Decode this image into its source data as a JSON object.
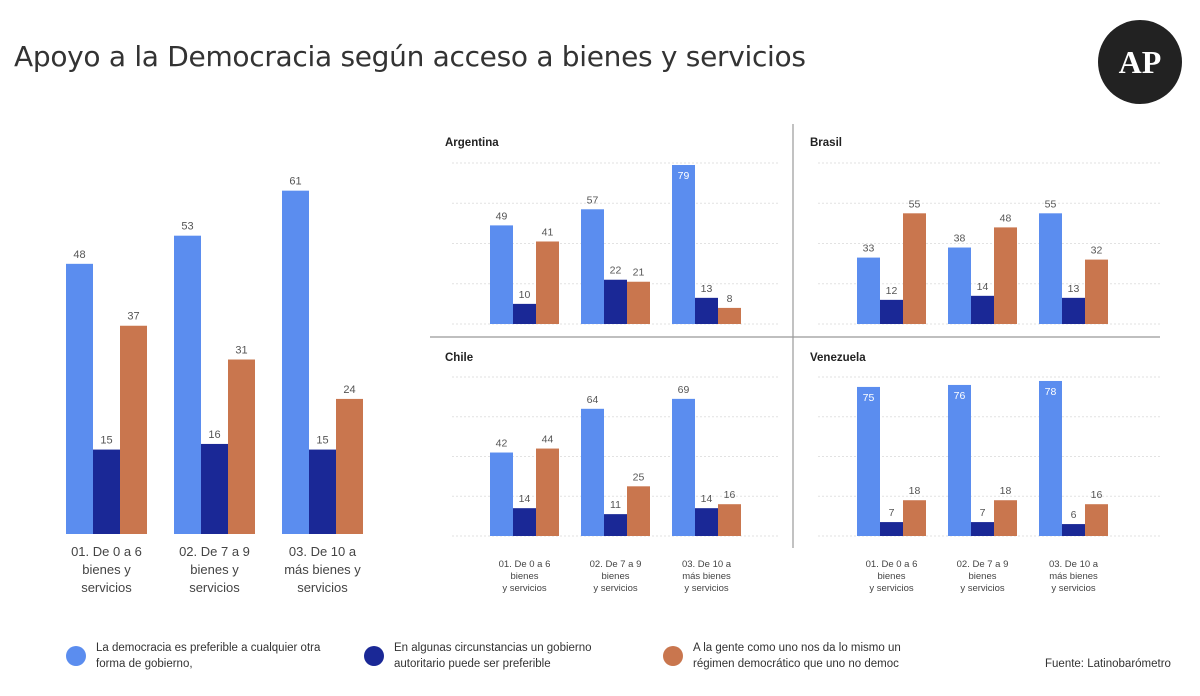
{
  "title": "Apoyo a la Democracia según acceso a bienes y servicios",
  "logo": "AP",
  "source": "Fuente: Latinobarómetro",
  "colors": {
    "series1": "#5B8DEF",
    "series2": "#1A2896",
    "series3": "#C9764E"
  },
  "chart_data": [
    {
      "type": "bar",
      "panel": "overall",
      "title": "",
      "categories": [
        "01. De 0 a 6 bienes y servicios",
        "02. De 7 a 9 bienes y servicios",
        "03. De 10 a más bienes y servicios"
      ],
      "series": [
        {
          "name": "La democracia es preferible a cualquier otra forma de gobierno,",
          "values": [
            48,
            53,
            61
          ]
        },
        {
          "name": "En algunas circunstancias un gobierno autoritario puede ser preferible",
          "values": [
            15,
            16,
            15
          ]
        },
        {
          "name": "A la gente como uno nos da lo mismo un régimen democrático que uno no democ",
          "values": [
            37,
            31,
            24
          ]
        }
      ],
      "ylim": [
        0,
        70
      ]
    },
    {
      "type": "bar",
      "panel": "Argentina",
      "title": "Argentina",
      "categories": [
        "01. De 0 a 6 bienes y servicios",
        "02. De 7 a 9 bienes y servicios",
        "03. De 10 a más bienes y servicios"
      ],
      "series": [
        {
          "name": "La democracia es preferible a cualquier otra forma de gobierno,",
          "values": [
            49,
            57,
            79
          ]
        },
        {
          "name": "En algunas circunstancias un gobierno autoritario puede ser preferible",
          "values": [
            10,
            22,
            13
          ]
        },
        {
          "name": "A la gente como uno nos da lo mismo un régimen democrático que uno no democ",
          "values": [
            41,
            21,
            8
          ]
        }
      ],
      "ylim": [
        0,
        80
      ]
    },
    {
      "type": "bar",
      "panel": "Brasil",
      "title": "Brasil",
      "categories": [
        "01. De 0 a 6 bienes y servicios",
        "02. De 7 a 9 bienes y servicios",
        "03. De 10 a más bienes y servicios"
      ],
      "series": [
        {
          "name": "La democracia es preferible a cualquier otra forma de gobierno,",
          "values": [
            33,
            38,
            55
          ]
        },
        {
          "name": "En algunas circunstancias un gobierno autoritario puede ser preferible",
          "values": [
            12,
            14,
            13
          ]
        },
        {
          "name": "A la gente como uno nos da lo mismo un régimen democrático que uno no democ",
          "values": [
            55,
            48,
            32
          ]
        }
      ],
      "ylim": [
        0,
        80
      ]
    },
    {
      "type": "bar",
      "panel": "Chile",
      "title": "Chile",
      "categories": [
        "01. De 0 a 6 bienes y servicios",
        "02. De 7 a 9 bienes y servicios",
        "03. De 10 a más bienes y servicios"
      ],
      "series": [
        {
          "name": "La democracia es preferible a cualquier otra forma de gobierno,",
          "values": [
            42,
            64,
            69
          ]
        },
        {
          "name": "En algunas circunstancias un gobierno autoritario puede ser preferible",
          "values": [
            14,
            11,
            14
          ]
        },
        {
          "name": "A la gente como uno nos da lo mismo un régimen democrático que uno no democ",
          "values": [
            44,
            25,
            16
          ]
        }
      ],
      "ylim": [
        0,
        80
      ]
    },
    {
      "type": "bar",
      "panel": "Venezuela",
      "title": "Venezuela",
      "categories": [
        "01. De 0 a 6 bienes y servicios",
        "02. De 7 a 9 bienes y servicios",
        "03. De 10 a más bienes y servicios"
      ],
      "series": [
        {
          "name": "La democracia es preferible a cualquier otra forma de gobierno,",
          "values": [
            75,
            76,
            78
          ]
        },
        {
          "name": "En algunas circunstancias un gobierno autoritario puede ser preferible",
          "values": [
            7,
            7,
            6
          ]
        },
        {
          "name": "A la gente como uno nos da lo mismo un régimen democrático que uno no democ",
          "values": [
            18,
            18,
            16
          ]
        }
      ],
      "ylim": [
        0,
        80
      ]
    }
  ]
}
